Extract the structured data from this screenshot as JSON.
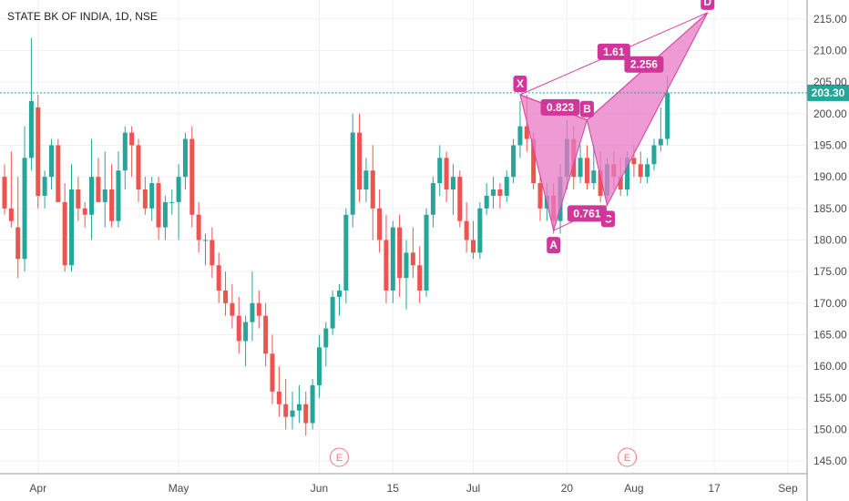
{
  "title": "STATE BK OF INDIA, 1D, NSE",
  "last_price": "203.30",
  "colors": {
    "up": "#26a69a",
    "down": "#ef5350",
    "pattern_fill": "#e879c6",
    "pattern_stroke": "#d43fa4",
    "label_bg": "#d1369a",
    "price_line": "#26a69a",
    "grid": "#eef0f3",
    "axis_line": "#999999",
    "earnings": "#ef7b7b"
  },
  "chart_data": {
    "type": "candlestick",
    "ylim": [
      143,
      218
    ],
    "y_ticks": [
      "145.00",
      "150.00",
      "155.00",
      "160.00",
      "165.00",
      "170.00",
      "175.00",
      "180.00",
      "185.00",
      "190.00",
      "195.00",
      "200.00",
      "205.00",
      "210.00",
      "215.00"
    ],
    "x_ticks": [
      {
        "label": "Apr",
        "bar": 5
      },
      {
        "label": "May",
        "bar": 26
      },
      {
        "label": "Jun",
        "bar": 47
      },
      {
        "label": "15",
        "bar": 58
      },
      {
        "label": "Jul",
        "bar": 70
      },
      {
        "label": "20",
        "bar": 84
      },
      {
        "label": "Aug",
        "bar": 94
      },
      {
        "label": "17",
        "bar": 106
      },
      {
        "label": "Sep",
        "bar": 117
      }
    ],
    "candles": [
      [
        190,
        192,
        184,
        185
      ],
      [
        185,
        194,
        182,
        183
      ],
      [
        182,
        190,
        174,
        177
      ],
      [
        177,
        198,
        175,
        193
      ],
      [
        193,
        212,
        191,
        202
      ],
      [
        201,
        203,
        185,
        187
      ],
      [
        187,
        191,
        185,
        190
      ],
      [
        190,
        196,
        188,
        195
      ],
      [
        195,
        196,
        186,
        186
      ],
      [
        186,
        189,
        175,
        176
      ],
      [
        176,
        192,
        175,
        188
      ],
      [
        188,
        190,
        183,
        185
      ],
      [
        185,
        186,
        182,
        184
      ],
      [
        184,
        196,
        180,
        190
      ],
      [
        190,
        193,
        186,
        186
      ],
      [
        186,
        194,
        182,
        188
      ],
      [
        188,
        192,
        182,
        183
      ],
      [
        183,
        194,
        182,
        191
      ],
      [
        191,
        198,
        188,
        197
      ],
      [
        197,
        198,
        190,
        195
      ],
      [
        195,
        196,
        186,
        188
      ],
      [
        188,
        190,
        184,
        185
      ],
      [
        185,
        190,
        183,
        189
      ],
      [
        189,
        190,
        180,
        182
      ],
      [
        182,
        187,
        180,
        186
      ],
      [
        186,
        188,
        184,
        186
      ],
      [
        186,
        192,
        180,
        190
      ],
      [
        190,
        197,
        188,
        196
      ],
      [
        196,
        198,
        182,
        184
      ],
      [
        184,
        186,
        178,
        180
      ],
      [
        180,
        181,
        176,
        180
      ],
      [
        180,
        182,
        174,
        176
      ],
      [
        176,
        178,
        170,
        172
      ],
      [
        172,
        175,
        168,
        170
      ],
      [
        170,
        173,
        166,
        168
      ],
      [
        168,
        171,
        162,
        164
      ],
      [
        164,
        168,
        160,
        167
      ],
      [
        167,
        175,
        164,
        170
      ],
      [
        170,
        172,
        166,
        168
      ],
      [
        168,
        170,
        160,
        162
      ],
      [
        162,
        165,
        154,
        156
      ],
      [
        156,
        160,
        152,
        154
      ],
      [
        154,
        158,
        150,
        152
      ],
      [
        152,
        156,
        150,
        153
      ],
      [
        153,
        157,
        151,
        154
      ],
      [
        154,
        156,
        149,
        151
      ],
      [
        151,
        158,
        150,
        157
      ],
      [
        157,
        165,
        155,
        163
      ],
      [
        163,
        167,
        160,
        166
      ],
      [
        166,
        172,
        165,
        171
      ],
      [
        171,
        173,
        168,
        172
      ],
      [
        172,
        185,
        170,
        184
      ],
      [
        184,
        200,
        182,
        197
      ],
      [
        197,
        200,
        186,
        188
      ],
      [
        188,
        193,
        186,
        191
      ],
      [
        191,
        195,
        180,
        185
      ],
      [
        185,
        188,
        178,
        180
      ],
      [
        180,
        184,
        170,
        172
      ],
      [
        172,
        183,
        170,
        182
      ],
      [
        182,
        184,
        171,
        174
      ],
      [
        174,
        180,
        169,
        178
      ],
      [
        178,
        182,
        174,
        176
      ],
      [
        176,
        179,
        170,
        172
      ],
      [
        172,
        185,
        171,
        184
      ],
      [
        184,
        190,
        182,
        189
      ],
      [
        189,
        195,
        187,
        193
      ],
      [
        193,
        194,
        186,
        188
      ],
      [
        188,
        192,
        184,
        190
      ],
      [
        190,
        191,
        182,
        183
      ],
      [
        183,
        186,
        178,
        180
      ],
      [
        180,
        183,
        177,
        178
      ],
      [
        178,
        186,
        177,
        185
      ],
      [
        185,
        189,
        184,
        187
      ],
      [
        187,
        190,
        185,
        188
      ],
      [
        188,
        189,
        185,
        187
      ],
      [
        187,
        191,
        186,
        190
      ],
      [
        190,
        196,
        189,
        195
      ],
      [
        195,
        202,
        193,
        198
      ],
      [
        198,
        203,
        194,
        196
      ],
      [
        196,
        197,
        188,
        189
      ],
      [
        189,
        190,
        183,
        185
      ],
      [
        185,
        189,
        183,
        187
      ],
      [
        187,
        189,
        181,
        183
      ],
      [
        183,
        192,
        181,
        190
      ],
      [
        190,
        199,
        188,
        196
      ],
      [
        196,
        198,
        188,
        190
      ],
      [
        190,
        195,
        189,
        193
      ],
      [
        193,
        195,
        188,
        189
      ],
      [
        189,
        195,
        188,
        191
      ],
      [
        191,
        194,
        186,
        187
      ],
      [
        187,
        193,
        186,
        192
      ],
      [
        192,
        194,
        188,
        190
      ],
      [
        190,
        193,
        187,
        188
      ],
      [
        188,
        194,
        187,
        193
      ],
      [
        193,
        195,
        190,
        192
      ],
      [
        192,
        194,
        189,
        190
      ],
      [
        190,
        193,
        189,
        192
      ],
      [
        192,
        196,
        191,
        195
      ],
      [
        195,
        201,
        194,
        196
      ],
      [
        196,
        206,
        195,
        203.3
      ]
    ],
    "harmonic_pattern": {
      "points": [
        {
          "label": "X",
          "bar": 77,
          "price": 203
        },
        {
          "label": "A",
          "bar": 82,
          "price": 181.5
        },
        {
          "label": "B",
          "bar": 87,
          "price": 199
        },
        {
          "label": "C",
          "bar": 90,
          "price": 185.5
        },
        {
          "label": "D",
          "bar": 105,
          "price": 216
        }
      ],
      "ratios": [
        {
          "label": "0.823",
          "bar": 83,
          "price": 201
        },
        {
          "label": "0.761",
          "bar": 87,
          "price": 184.2
        },
        {
          "label": "1.61",
          "bar": 91,
          "price": 209.8
        },
        {
          "label": "2.256",
          "bar": 95.5,
          "price": 207.8
        }
      ]
    },
    "events": [
      {
        "label": "E",
        "bar": 50
      },
      {
        "label": "E",
        "bar": 93
      }
    ]
  }
}
